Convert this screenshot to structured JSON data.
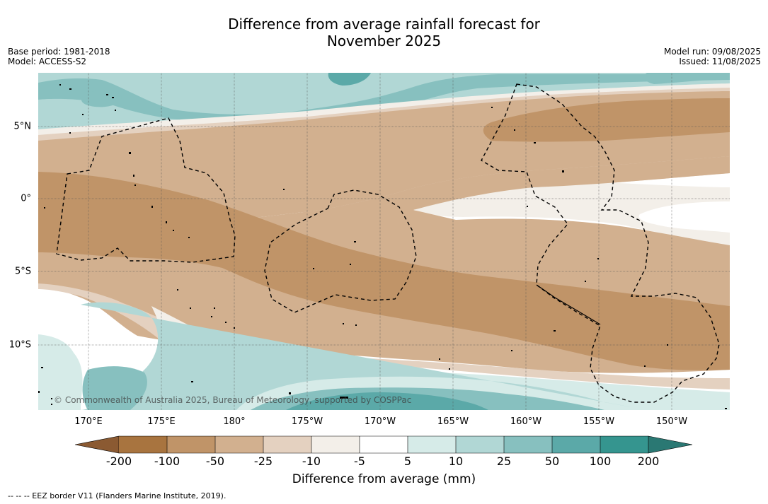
{
  "title": {
    "line1": "Difference from average rainfall forecast for",
    "line2": "November 2025"
  },
  "meta_left": {
    "base_period": "Base period: 1981-2018",
    "model": "Model: ACCESS-S2"
  },
  "meta_right": {
    "model_run": "Model run: 09/08/2025",
    "issued": "Issued: 11/08/2025"
  },
  "map": {
    "lat_labels": [
      "5°N",
      "0°",
      "5°S",
      "10°S"
    ],
    "lon_labels": [
      "170°E",
      "175°E",
      "180°",
      "175°W",
      "170°W",
      "165°W",
      "160°W",
      "155°W",
      "150°W"
    ],
    "copyright": "© Commonwealth of Australia 2025, Bureau of Meteorology, supported by COSPPac",
    "colors": {
      "below_-200": "#8b5a32",
      "-200_-100": "#a8743f",
      "-100_-50": "#c09468",
      "-50_-25": "#d2b08f",
      "-25_-10": "#e4d1c0",
      "-10_-5": "#f3efe9",
      "-5_5": "#ffffff",
      "5_10": "#d6ebe8",
      "10_25": "#b1d7d5",
      "25_50": "#87c0bf",
      "50_100": "#5ba9a8",
      "100_200": "#35958f",
      "above_200": "#2a7873"
    }
  },
  "colorbar": {
    "ticks": [
      "-200",
      "-100",
      "-50",
      "-25",
      "-10",
      "-5",
      "5",
      "10",
      "25",
      "50",
      "100",
      "200"
    ],
    "label": "Difference from average (mm)"
  },
  "footnote": "-- -- -- EEZ border V11 (Flanders Marine Institute, 2019)."
}
